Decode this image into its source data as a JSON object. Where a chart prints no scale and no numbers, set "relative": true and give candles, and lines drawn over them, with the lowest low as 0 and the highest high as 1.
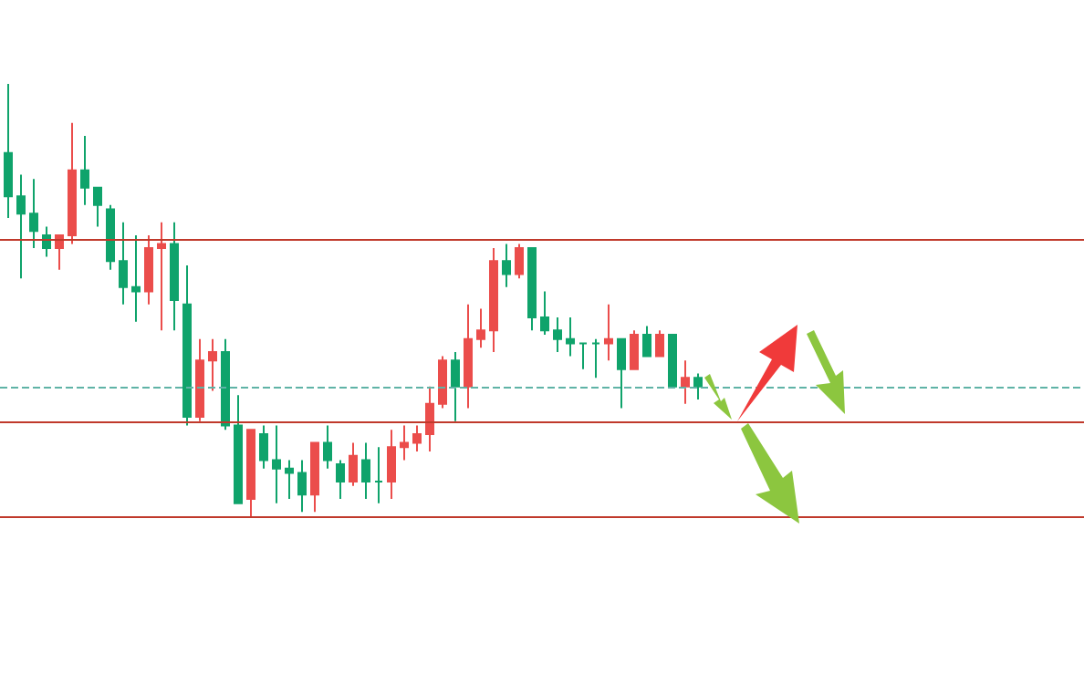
{
  "chart_data": {
    "type": "candlestick",
    "relative": true,
    "categories": [
      null,
      null,
      null,
      null,
      null,
      null,
      null,
      null,
      null,
      null,
      null,
      null,
      null,
      null,
      null,
      null,
      null,
      null,
      null,
      null,
      null,
      null,
      null,
      null,
      null,
      null,
      null,
      null,
      null,
      null,
      null,
      null,
      null,
      null,
      null,
      null,
      null,
      null,
      null,
      null,
      null,
      null,
      null,
      null,
      null,
      null,
      null,
      null,
      null,
      null,
      null,
      null,
      null,
      null,
      null
    ],
    "ohlc": [
      [
        0.84,
        1,
        0.69,
        0.74
      ],
      [
        0.74,
        0.79,
        0.55,
        0.7
      ],
      [
        0.7,
        0.78,
        0.62,
        0.66
      ],
      [
        0.65,
        0.67,
        0.6,
        0.62
      ],
      [
        0.62,
        0.65,
        0.57,
        0.65
      ],
      [
        0.65,
        0.91,
        0.63,
        0.8
      ],
      [
        0.8,
        0.88,
        0.72,
        0.76
      ],
      [
        0.76,
        0.76,
        0.67,
        0.72
      ],
      [
        0.71,
        0.72,
        0.57,
        0.59
      ],
      [
        0.59,
        0.68,
        0.49,
        0.53
      ],
      [
        0.53,
        0.65,
        0.45,
        0.52
      ],
      [
        0.52,
        0.65,
        0.49,
        0.62
      ],
      [
        0.62,
        0.68,
        0.43,
        0.63
      ],
      [
        0.63,
        0.68,
        0.43,
        0.5
      ],
      [
        0.49,
        0.58,
        0.21,
        0.23
      ],
      [
        0.23,
        0.41,
        0.22,
        0.36
      ],
      [
        0.36,
        0.41,
        0.29,
        0.38
      ],
      [
        0.38,
        0.41,
        0.2,
        0.21
      ],
      [
        0.21,
        0.28,
        0.03,
        0.03
      ],
      [
        0.04,
        0.2,
        0,
        0.2
      ],
      [
        0.19,
        0.21,
        0.11,
        0.13
      ],
      [
        0.13,
        0.21,
        0.03,
        0.11
      ],
      [
        0.11,
        0.13,
        0.04,
        0.1
      ],
      [
        0.1,
        0.13,
        0.01,
        0.05
      ],
      [
        0.05,
        0.17,
        0.01,
        0.17
      ],
      [
        0.17,
        0.21,
        0.11,
        0.13
      ],
      [
        0.12,
        0.13,
        0.04,
        0.08
      ],
      [
        0.08,
        0.17,
        0.07,
        0.14
      ],
      [
        0.13,
        0.17,
        0.04,
        0.08
      ],
      [
        0.08,
        0.16,
        0.03,
        0.08
      ],
      [
        0.08,
        0.2,
        0.04,
        0.16
      ],
      [
        0.16,
        0.21,
        0.13,
        0.17
      ],
      [
        0.17,
        0.21,
        0.15,
        0.19
      ],
      [
        0.19,
        0.3,
        0.15,
        0.26
      ],
      [
        0.26,
        0.37,
        0.25,
        0.36
      ],
      [
        0.36,
        0.38,
        0.22,
        0.3
      ],
      [
        0.3,
        0.49,
        0.25,
        0.41
      ],
      [
        0.41,
        0.48,
        0.39,
        0.43
      ],
      [
        0.43,
        0.62,
        0.38,
        0.59
      ],
      [
        0.59,
        0.63,
        0.53,
        0.56
      ],
      [
        0.56,
        0.63,
        0.55,
        0.62
      ],
      [
        0.62,
        0.62,
        0.43,
        0.46
      ],
      [
        0.46,
        0.52,
        0.42,
        0.43
      ],
      [
        0.43,
        0.46,
        0.38,
        0.41
      ],
      [
        0.41,
        0.46,
        0.37,
        0.4
      ],
      [
        0.4,
        0.4,
        0.34,
        0.4
      ],
      [
        0.4,
        0.41,
        0.32,
        0.4
      ],
      [
        0.4,
        0.49,
        0.36,
        0.41
      ],
      [
        0.41,
        0.41,
        0.25,
        0.34
      ],
      [
        0.34,
        0.43,
        0.34,
        0.42
      ],
      [
        0.42,
        0.44,
        0.37,
        0.37
      ],
      [
        0.37,
        0.43,
        0.37,
        0.42
      ],
      [
        0.42,
        0.42,
        0.3,
        0.3
      ],
      [
        0.3,
        0.36,
        0.26,
        0.32
      ],
      [
        0.32,
        0.33,
        0.27,
        0.3
      ]
    ],
    "colors": [
      "#0fa36b",
      "#0fa36b",
      "#0fa36b",
      "#0fa36b",
      "#eb4d4b",
      "#eb4d4b",
      "#0fa36b",
      "#0fa36b",
      "#0fa36b",
      "#0fa36b",
      "#0fa36b",
      "#eb4d4b",
      "#eb4d4b",
      "#0fa36b",
      "#0fa36b",
      "#eb4d4b",
      "#eb4d4b",
      "#0fa36b",
      "#0fa36b",
      "#eb4d4b",
      "#0fa36b",
      "#0fa36b",
      "#0fa36b",
      "#0fa36b",
      "#eb4d4b",
      "#0fa36b",
      "#0fa36b",
      "#eb4d4b",
      "#0fa36b",
      "#0fa36b",
      "#eb4d4b",
      "#eb4d4b",
      "#eb4d4b",
      "#eb4d4b",
      "#eb4d4b",
      "#0fa36b",
      "#eb4d4b",
      "#eb4d4b",
      "#eb4d4b",
      "#0fa36b",
      "#eb4d4b",
      "#0fa36b",
      "#0fa36b",
      "#0fa36b",
      "#0fa36b",
      "#0fa36b",
      "#0fa36b",
      "#eb4d4b",
      "#0fa36b",
      "#eb4d4b",
      "#0fa36b",
      "#eb4d4b",
      "#0fa36b",
      "#eb4d4b",
      "#0fa36b"
    ],
    "ref_lines": [
      {
        "axis": "y",
        "value": 0.64,
        "color": "#c0392b",
        "line_style": "solid"
      },
      {
        "axis": "y",
        "value": 0.3,
        "color": "#5fb3a6",
        "line_style": "dashed"
      },
      {
        "axis": "y",
        "value": 0.22,
        "color": "#c0392b",
        "line_style": "solid"
      },
      {
        "axis": "y",
        "value": 0,
        "color": "#c0392b",
        "line_style": "solid"
      }
    ]
  }
}
